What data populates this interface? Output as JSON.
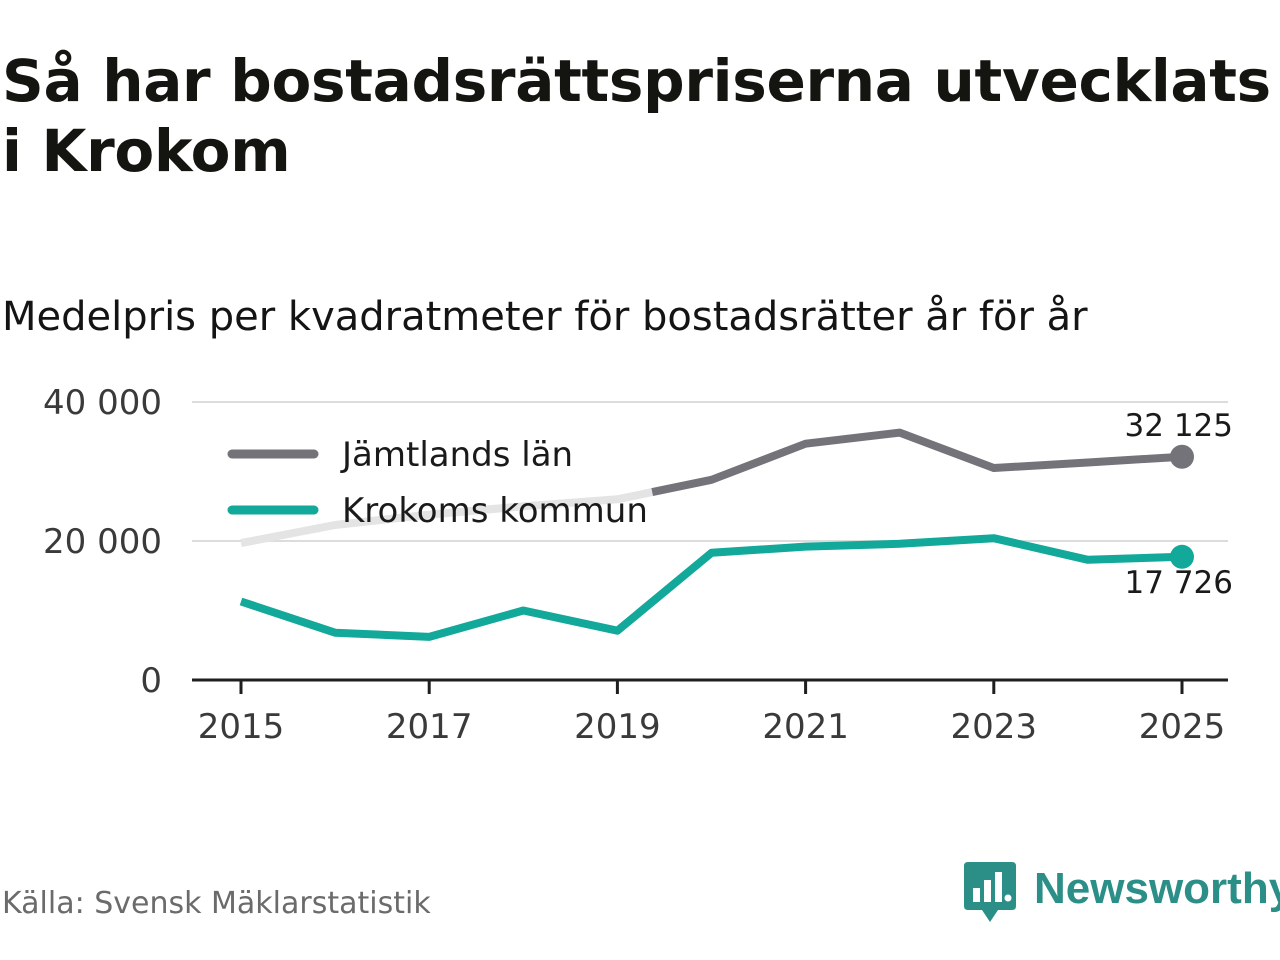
{
  "header": {
    "title": "Så har bostadsrättspriserna utvecklats i Krokom",
    "subtitle": "Medelpris per kvadratmeter för bostadsrätter år för år"
  },
  "footer": {
    "source": "Källa: Svensk Mäklarstatistik",
    "brand": "Newsworthy"
  },
  "colors": {
    "jamtland": "#74737a",
    "jamtland_faded": "#e4e4e4",
    "krokom": "#12a89a",
    "grid": "#dcdcdc",
    "axis": "#1e1e1e",
    "brand": "#2b8f88"
  },
  "chart_data": {
    "type": "line",
    "title": "Medelpris per kvadratmeter för bostadsrätter år för år",
    "xlabel": "",
    "ylabel": "",
    "x": [
      2015,
      2016,
      2017,
      2018,
      2019,
      2020,
      2021,
      2022,
      2023,
      2024,
      2025
    ],
    "xlim": [
      2015,
      2025
    ],
    "xticks": [
      2015,
      2017,
      2019,
      2021,
      2023,
      2025
    ],
    "xtick_labels": [
      "2015",
      "2017",
      "2019",
      "2021",
      "2023",
      "2025"
    ],
    "ylim": [
      0,
      40000
    ],
    "yticks": [
      0,
      20000,
      40000
    ],
    "ytick_labels": [
      "0",
      "20 000",
      "40 000"
    ],
    "grid": true,
    "legend_position": "top-left",
    "series": [
      {
        "name": "Jämtlands län",
        "key": "jamtland",
        "values": [
          19700,
          22300,
          23800,
          25000,
          26000,
          28800,
          34000,
          35600,
          30500,
          31300,
          32125
        ],
        "end_label": "32 125"
      },
      {
        "name": "Krokoms kommun",
        "key": "krokom",
        "values": [
          11300,
          6800,
          6200,
          10000,
          7100,
          18300,
          19200,
          19600,
          20400,
          17300,
          17726
        ],
        "end_label": "17 726"
      }
    ]
  }
}
